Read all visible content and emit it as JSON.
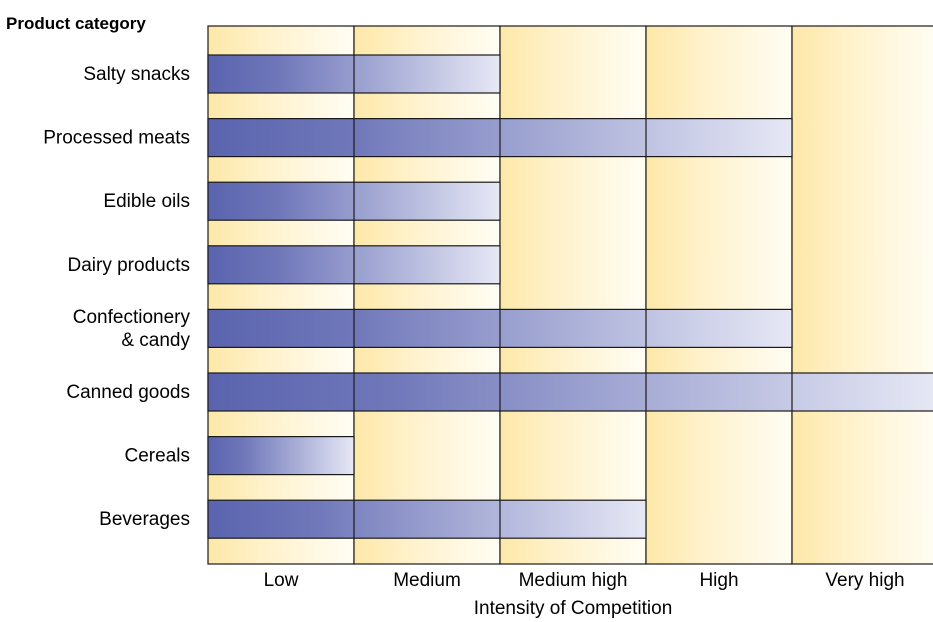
{
  "chart_data": {
    "type": "bar",
    "orientation": "horizontal",
    "title": "",
    "ylabel": "Product category",
    "xlabel": "Intensity of Competition",
    "levels": [
      "Low",
      "Medium",
      "Medium high",
      "High",
      "Very high"
    ],
    "categories": [
      "Salty snacks",
      "Processed meats",
      "Edible oils",
      "Dairy products",
      [
        "Confectionery",
        "& candy"
      ],
      "Canned goods",
      "Cereals",
      "Beverages"
    ],
    "values": [
      2,
      4,
      2,
      2,
      4,
      5,
      1,
      3
    ],
    "xlim": [
      0,
      5
    ],
    "colors": {
      "bar_dark": "#5a64ae",
      "bar_light": "#e6e8f5",
      "band_light": "#fffdf4",
      "band_dark": "#fde8a8",
      "outline": "#1a1a1a"
    }
  }
}
